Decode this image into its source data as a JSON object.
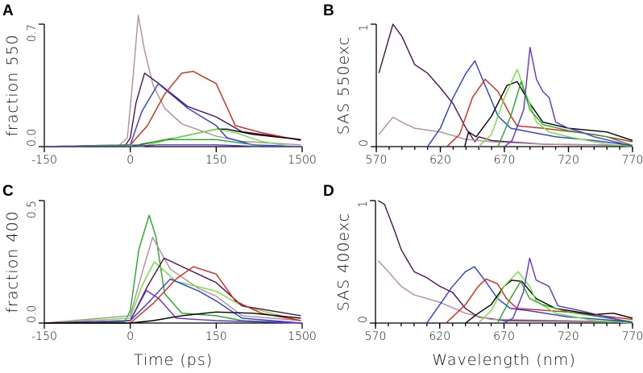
{
  "colors": {
    "pink": "#b48c9c",
    "dark_purple": "#4a1250",
    "blue": "#2a3ae0",
    "red": "#e02212",
    "black": "#000000",
    "light_green": "#6ee03a",
    "dark_green": "#23a823",
    "violet": "#6030d8"
  },
  "chart_data": [
    {
      "panel": "A",
      "type": "line",
      "xlabel": "",
      "ylabel": "fraction 550",
      "xscale": "piecewise: linear -150..150, log 150..1500",
      "xlim": [
        -150,
        1500
      ],
      "ylim": [
        0,
        0.7
      ],
      "xticks": [
        "-150",
        "0",
        "150",
        "1500"
      ],
      "xtick_values": [
        -150,
        0,
        150,
        1500
      ],
      "yticks": [
        "0.0",
        "0.7"
      ],
      "ytick_values": [
        0,
        0.7
      ],
      "series": [
        {
          "color": "pink",
          "x": [
            -150,
            -20,
            -5,
            5,
            14,
            25,
            40,
            60,
            90,
            150,
            300,
            1450
          ],
          "y": [
            0,
            0.005,
            0.05,
            0.4,
            0.75,
            0.55,
            0.35,
            0.22,
            0.13,
            0.06,
            0.03,
            0.01
          ]
        },
        {
          "color": "dark_purple",
          "x": [
            -150,
            -10,
            0,
            10,
            25,
            50,
            100,
            150,
            300,
            1450
          ],
          "y": [
            0,
            0,
            0.05,
            0.25,
            0.42,
            0.36,
            0.23,
            0.17,
            0.085,
            0.04
          ]
        },
        {
          "color": "blue",
          "x": [
            -150,
            0,
            20,
            49,
            100,
            150,
            200,
            400,
            1450
          ],
          "y": [
            0,
            0.01,
            0.2,
            0.36,
            0.22,
            0.12,
            0.05,
            0.01,
            0
          ]
        },
        {
          "color": "red",
          "x": [
            -150,
            0,
            30,
            60,
            90,
            110,
            150,
            250,
            500,
            1450
          ],
          "y": [
            0,
            0.01,
            0.12,
            0.3,
            0.42,
            0.43,
            0.36,
            0.12,
            0.08,
            0.035
          ]
        },
        {
          "color": "black",
          "x": [
            -150,
            0,
            30,
            80,
            150,
            200,
            400,
            1450
          ],
          "y": [
            0,
            0,
            0.02,
            0.05,
            0.1,
            0.1,
            0.07,
            0.04
          ]
        },
        {
          "color": "light_green",
          "x": [
            -150,
            20,
            80,
            150,
            250,
            500,
            1000,
            1450
          ],
          "y": [
            0,
            0,
            0.05,
            0.1,
            0.08,
            0.03,
            0.005,
            0
          ]
        },
        {
          "color": "dark_green",
          "x": [
            -150,
            20,
            60,
            150,
            300,
            600,
            1450
          ],
          "y": [
            0,
            0.01,
            0.04,
            0.04,
            0.02,
            0,
            0
          ]
        },
        {
          "color": "violet",
          "x": [
            -150,
            0,
            50,
            150,
            500,
            1450
          ],
          "y": [
            0,
            0,
            0.01,
            0.01,
            0,
            0
          ]
        }
      ]
    },
    {
      "panel": "B",
      "type": "line",
      "xlabel": "",
      "ylabel": "SAS 550exc",
      "xlim": [
        570,
        770
      ],
      "ylim": [
        0,
        1
      ],
      "xticks": [
        "570",
        "620",
        "670",
        "720",
        "770"
      ],
      "xtick_values": [
        570,
        620,
        670,
        720,
        770
      ],
      "yticks": [
        "0",
        "1"
      ],
      "ytick_values": [
        0,
        1
      ],
      "series": [
        {
          "color": "dark_purple",
          "x": [
            572,
            583,
            590,
            600,
            610,
            620,
            630,
            640,
            647,
            650,
            660,
            700,
            770
          ],
          "y": [
            0.6,
            1.0,
            0.9,
            0.67,
            0.6,
            0.48,
            0.35,
            0.15,
            0.04,
            0.08,
            0.05,
            0.02,
            0.01
          ]
        },
        {
          "color": "pink",
          "x": [
            572,
            583,
            590,
            600,
            620,
            640,
            660,
            700,
            770
          ],
          "y": [
            0.1,
            0.24,
            0.2,
            0.15,
            0.12,
            0.06,
            0.04,
            0.02,
            0.01
          ]
        },
        {
          "color": "blue",
          "x": [
            610,
            620,
            630,
            640,
            647,
            655,
            665,
            675,
            690,
            710,
            740,
            770
          ],
          "y": [
            0,
            0.15,
            0.4,
            0.6,
            0.7,
            0.5,
            0.25,
            0.15,
            0.12,
            0.08,
            0.05,
            0.01
          ]
        },
        {
          "color": "red",
          "x": [
            625,
            635,
            645,
            655,
            665,
            675,
            680,
            700,
            740,
            770
          ],
          "y": [
            0,
            0.1,
            0.4,
            0.55,
            0.45,
            0.25,
            0.17,
            0.15,
            0.1,
            0.04
          ]
        },
        {
          "color": "black",
          "x": [
            639,
            642,
            648,
            660,
            672,
            680,
            690,
            700,
            720,
            750,
            770
          ],
          "y": [
            0,
            0.12,
            0.08,
            0.25,
            0.5,
            0.53,
            0.35,
            0.2,
            0.15,
            0.12,
            0.05
          ]
        },
        {
          "color": "light_green",
          "x": [
            650,
            660,
            670,
            680,
            688,
            695,
            705,
            720,
            750,
            770
          ],
          "y": [
            0,
            0.1,
            0.4,
            0.63,
            0.4,
            0.2,
            0.12,
            0.08,
            0.02,
            0
          ]
        },
        {
          "color": "dark_green",
          "x": [
            665,
            675,
            683,
            690,
            700,
            720,
            750,
            770
          ],
          "y": [
            0,
            0.25,
            0.53,
            0.3,
            0.18,
            0.13,
            0.08,
            0.01
          ]
        },
        {
          "color": "violet",
          "x": [
            670,
            676,
            685,
            690,
            695,
            700,
            705,
            710,
            720,
            730,
            740,
            760,
            770
          ],
          "y": [
            0,
            0.05,
            0.3,
            0.81,
            0.55,
            0.45,
            0.4,
            0.2,
            0.15,
            0.12,
            0.08,
            0.03,
            0
          ]
        }
      ]
    },
    {
      "panel": "C",
      "type": "line",
      "xlabel": "Time (ps)",
      "ylabel": "fraction 400",
      "xscale": "piecewise: linear -150..150, log 150..1500",
      "xlim": [
        -150,
        1500
      ],
      "ylim": [
        0,
        0.5
      ],
      "xticks": [
        "-150",
        "0",
        "150",
        "1500"
      ],
      "xtick_values": [
        -150,
        0,
        150,
        1500
      ],
      "yticks": [
        "0.0",
        "0.5"
      ],
      "ytick_values": [
        0,
        0.5
      ],
      "series": [
        {
          "color": "dark_green",
          "x": [
            -150,
            -10,
            0,
            15,
            33,
            45,
            60,
            90,
            150,
            300,
            1450
          ],
          "y": [
            0,
            0.005,
            0.05,
            0.3,
            0.44,
            0.35,
            0.12,
            0.04,
            0.03,
            0.01,
            0
          ]
        },
        {
          "color": "pink",
          "x": [
            -150,
            0,
            20,
            39,
            70,
            120,
            150,
            300,
            1450
          ],
          "y": [
            0,
            0.03,
            0.2,
            0.35,
            0.22,
            0.14,
            0.11,
            0.03,
            0.01
          ]
        },
        {
          "color": "light_green",
          "x": [
            -150,
            0,
            20,
            42,
            80,
            150,
            300,
            1450
          ],
          "y": [
            0,
            0.02,
            0.15,
            0.25,
            0.17,
            0.13,
            0.07,
            0.01
          ]
        },
        {
          "color": "dark_purple",
          "x": [
            -150,
            0,
            30,
            59,
            100,
            150,
            300,
            1450
          ],
          "y": [
            0,
            0.01,
            0.15,
            0.265,
            0.22,
            0.165,
            0.07,
            0.03
          ]
        },
        {
          "color": "blue",
          "x": [
            -150,
            0,
            30,
            70,
            120,
            150,
            300,
            1450
          ],
          "y": [
            0,
            0.01,
            0.08,
            0.18,
            0.13,
            0.09,
            0.02,
            0
          ]
        },
        {
          "color": "violet",
          "x": [
            -150,
            0,
            28,
            50,
            80,
            150,
            1450
          ],
          "y": [
            0,
            0.01,
            0.133,
            0.1,
            0.02,
            0.01,
            0
          ]
        },
        {
          "color": "red",
          "x": [
            -150,
            0,
            40,
            80,
            110,
            150,
            250,
            500,
            1450
          ],
          "y": [
            0,
            0,
            0.08,
            0.18,
            0.23,
            0.2,
            0.09,
            0.04,
            0.01
          ]
        },
        {
          "color": "black",
          "x": [
            -150,
            0,
            40,
            90,
            150,
            400,
            1450
          ],
          "y": [
            0,
            0,
            0.01,
            0.03,
            0.045,
            0.04,
            0.02
          ]
        }
      ]
    },
    {
      "panel": "D",
      "type": "line",
      "xlabel": "Wavelength (nm)",
      "ylabel": "SAS 400exc",
      "xlim": [
        570,
        770
      ],
      "ylim": [
        0,
        1
      ],
      "xticks": [
        "570",
        "620",
        "670",
        "720",
        "770"
      ],
      "xtick_values": [
        570,
        620,
        670,
        720,
        770
      ],
      "yticks": [
        "0",
        "1"
      ],
      "ytick_values": [
        0,
        1
      ],
      "series": [
        {
          "color": "dark_purple",
          "x": [
            572,
            577,
            585,
            590,
            600,
            610,
            620,
            630,
            640,
            650,
            670,
            770
          ],
          "y": [
            1.0,
            0.97,
            0.75,
            0.6,
            0.42,
            0.37,
            0.3,
            0.25,
            0.12,
            0.05,
            0.02,
            0.01
          ]
        },
        {
          "color": "pink",
          "x": [
            572,
            580,
            590,
            600,
            620,
            640,
            660,
            770
          ],
          "y": [
            0.51,
            0.42,
            0.3,
            0.23,
            0.17,
            0.08,
            0.03,
            0.01
          ]
        },
        {
          "color": "blue",
          "x": [
            610,
            620,
            630,
            640,
            647,
            655,
            665,
            675,
            690,
            720,
            770
          ],
          "y": [
            0,
            0.15,
            0.3,
            0.42,
            0.46,
            0.35,
            0.2,
            0.12,
            0.1,
            0.05,
            0.01
          ]
        },
        {
          "color": "red",
          "x": [
            625,
            640,
            650,
            656,
            665,
            672,
            680,
            720,
            770
          ],
          "y": [
            0,
            0.15,
            0.3,
            0.36,
            0.32,
            0.2,
            0.12,
            0.09,
            0.03
          ]
        },
        {
          "color": "black",
          "x": [
            640,
            650,
            660,
            670,
            676,
            684,
            695,
            710,
            740,
            755,
            770
          ],
          "y": [
            0,
            0.08,
            0.15,
            0.3,
            0.35,
            0.34,
            0.2,
            0.12,
            0.07,
            0.08,
            0.04
          ]
        },
        {
          "color": "light_green",
          "x": [
            650,
            660,
            670,
            681,
            690,
            695,
            710,
            740,
            770
          ],
          "y": [
            0,
            0.1,
            0.3,
            0.42,
            0.3,
            0.18,
            0.08,
            0.02,
            0
          ]
        },
        {
          "color": "dark_green",
          "x": [
            665,
            675,
            683,
            690,
            700,
            720,
            770
          ],
          "y": [
            0,
            0.2,
            0.34,
            0.2,
            0.15,
            0.09,
            0.01
          ]
        },
        {
          "color": "violet",
          "x": [
            670,
            677,
            685,
            690,
            695,
            705,
            712,
            730,
            750,
            770
          ],
          "y": [
            0,
            0.04,
            0.25,
            0.53,
            0.35,
            0.3,
            0.14,
            0.1,
            0.05,
            0
          ]
        }
      ]
    }
  ]
}
